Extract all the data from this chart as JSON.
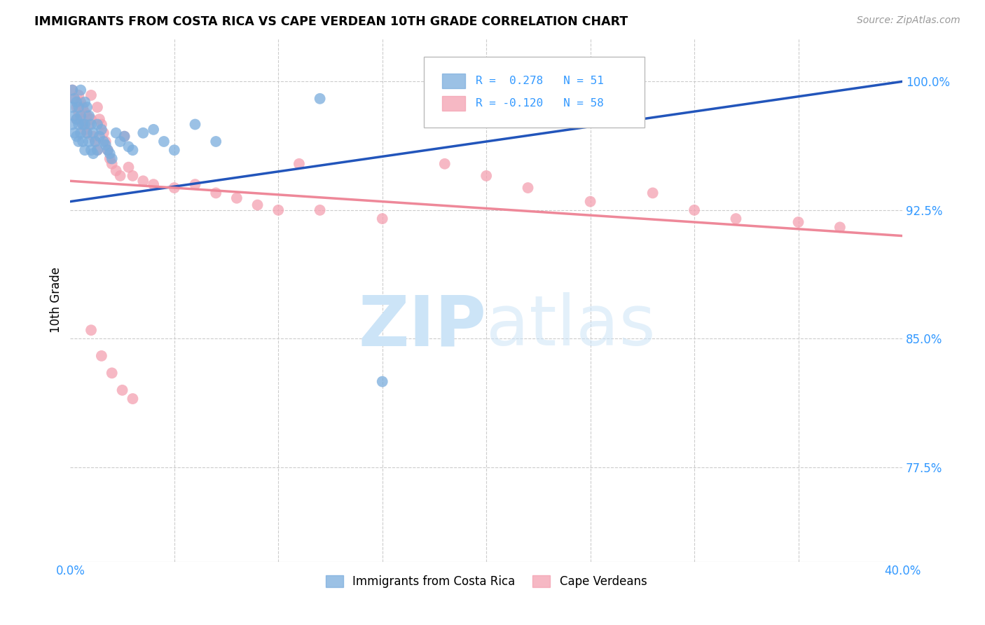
{
  "title": "IMMIGRANTS FROM COSTA RICA VS CAPE VERDEAN 10TH GRADE CORRELATION CHART",
  "source": "Source: ZipAtlas.com",
  "ylabel": "10th Grade",
  "yticks": [
    "77.5%",
    "85.0%",
    "92.5%",
    "100.0%"
  ],
  "ytick_vals": [
    0.775,
    0.85,
    0.925,
    1.0
  ],
  "xmin": 0.0,
  "xmax": 0.4,
  "ymin": 0.72,
  "ymax": 1.025,
  "costa_rica_color": "#7aaddd",
  "cape_verdean_color": "#f4a0b0",
  "trendline_cr_color": "#2255bb",
  "trendline_cv_color": "#ee8899",
  "costa_rica_label": "Immigrants from Costa Rica",
  "cape_verdean_label": "Cape Verdeans",
  "cr_R": 0.278,
  "cv_R": -0.12,
  "cr_N": 51,
  "cv_N": 58,
  "costa_rica_x": [
    0.001,
    0.001,
    0.001,
    0.002,
    0.002,
    0.002,
    0.003,
    0.003,
    0.003,
    0.004,
    0.004,
    0.004,
    0.005,
    0.005,
    0.005,
    0.006,
    0.006,
    0.007,
    0.007,
    0.007,
    0.008,
    0.008,
    0.009,
    0.009,
    0.01,
    0.01,
    0.011,
    0.011,
    0.012,
    0.013,
    0.013,
    0.014,
    0.015,
    0.016,
    0.017,
    0.018,
    0.019,
    0.02,
    0.022,
    0.024,
    0.026,
    0.028,
    0.03,
    0.035,
    0.04,
    0.045,
    0.05,
    0.06,
    0.07,
    0.12,
    0.15
  ],
  "costa_rica_y": [
    0.995,
    0.985,
    0.975,
    0.99,
    0.98,
    0.97,
    0.988,
    0.978,
    0.968,
    0.985,
    0.975,
    0.965,
    0.995,
    0.98,
    0.97,
    0.975,
    0.965,
    0.988,
    0.975,
    0.96,
    0.985,
    0.97,
    0.98,
    0.965,
    0.975,
    0.96,
    0.97,
    0.958,
    0.965,
    0.975,
    0.96,
    0.968,
    0.972,
    0.965,
    0.963,
    0.96,
    0.958,
    0.955,
    0.97,
    0.965,
    0.968,
    0.962,
    0.96,
    0.97,
    0.972,
    0.965,
    0.96,
    0.975,
    0.965,
    0.99,
    0.825
  ],
  "cape_verdean_x": [
    0.001,
    0.002,
    0.003,
    0.003,
    0.004,
    0.004,
    0.005,
    0.005,
    0.006,
    0.006,
    0.007,
    0.007,
    0.008,
    0.008,
    0.009,
    0.01,
    0.01,
    0.011,
    0.012,
    0.013,
    0.013,
    0.014,
    0.015,
    0.016,
    0.017,
    0.018,
    0.019,
    0.02,
    0.022,
    0.024,
    0.026,
    0.028,
    0.03,
    0.035,
    0.04,
    0.05,
    0.06,
    0.07,
    0.08,
    0.09,
    0.1,
    0.11,
    0.12,
    0.15,
    0.18,
    0.2,
    0.22,
    0.25,
    0.28,
    0.3,
    0.32,
    0.35,
    0.37,
    0.01,
    0.015,
    0.02,
    0.025,
    0.03
  ],
  "cape_verdean_y": [
    0.995,
    0.99,
    0.985,
    0.978,
    0.992,
    0.982,
    0.988,
    0.978,
    0.985,
    0.975,
    0.982,
    0.972,
    0.98,
    0.97,
    0.975,
    0.992,
    0.978,
    0.968,
    0.965,
    0.985,
    0.96,
    0.978,
    0.975,
    0.97,
    0.965,
    0.96,
    0.955,
    0.952,
    0.948,
    0.945,
    0.968,
    0.95,
    0.945,
    0.942,
    0.94,
    0.938,
    0.94,
    0.935,
    0.932,
    0.928,
    0.925,
    0.952,
    0.925,
    0.92,
    0.952,
    0.945,
    0.938,
    0.93,
    0.935,
    0.925,
    0.92,
    0.918,
    0.915,
    0.855,
    0.84,
    0.83,
    0.82,
    0.815
  ]
}
